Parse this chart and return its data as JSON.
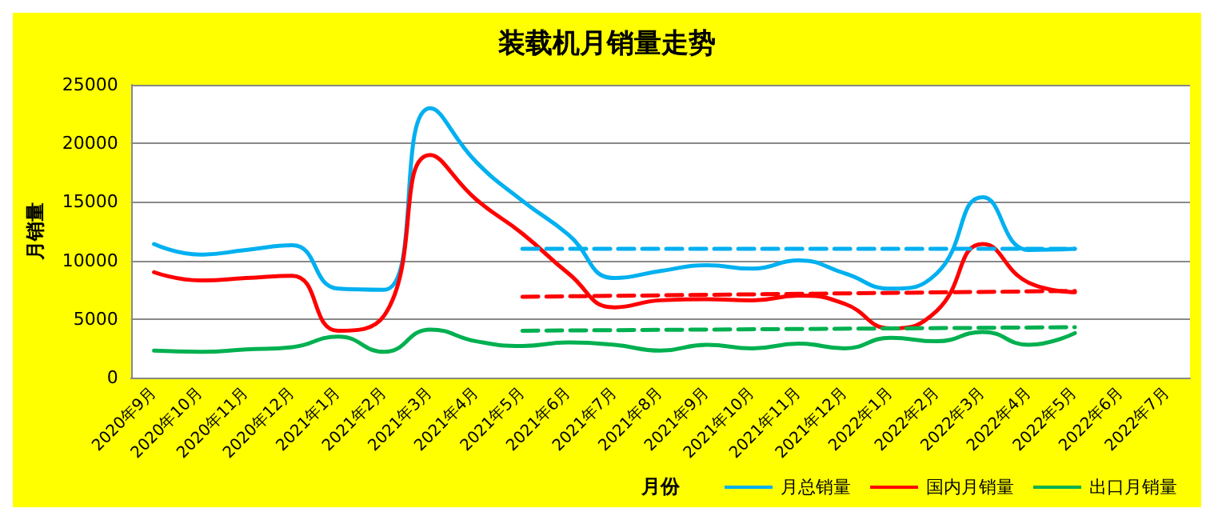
{
  "chart_data": {
    "type": "line",
    "title": "装载机月销量走势",
    "xlabel": "月份",
    "ylabel": "月销量",
    "categories": [
      "2020年9月",
      "2020年10月",
      "2020年11月",
      "2020年12月",
      "2021年1月",
      "2021年2月",
      "2021年3月",
      "2021年4月",
      "2021年5月",
      "2021年6月",
      "2021年7月",
      "2021年8月",
      "2021年9月",
      "2021年10月",
      "2021年11月",
      "2021年12月",
      "2022年1月",
      "2022年2月",
      "2022年3月",
      "2022年4月",
      "2022年5月",
      "2022年6月",
      "2022年7月"
    ],
    "series": [
      {
        "name": "月总销量",
        "color": "#00b0f0",
        "values": [
          11400,
          10500,
          10900,
          11300,
          7600,
          7500,
          23000,
          18400,
          15100,
          12200,
          8500,
          9100,
          9600,
          9300,
          10000,
          8900,
          7600,
          8900,
          15400,
          10900,
          11000,
          null,
          null
        ]
      },
      {
        "name": "国内月销量",
        "color": "#ff0000",
        "values": [
          9000,
          8300,
          8500,
          8700,
          4000,
          5300,
          19000,
          15200,
          12300,
          8900,
          6000,
          6600,
          6700,
          6600,
          7000,
          6300,
          4200,
          5700,
          11400,
          8100,
          7300,
          null,
          null
        ]
      },
      {
        "name": "出口月销量",
        "color": "#00b050",
        "values": [
          2300,
          2200,
          2400,
          2600,
          3500,
          2200,
          4100,
          3100,
          2700,
          3000,
          2800,
          2300,
          2800,
          2500,
          2900,
          2500,
          3400,
          3100,
          3900,
          2800,
          3800,
          null,
          null
        ]
      },
      {
        "color": "#00b0f0",
        "line_style": "dashed",
        "x": [
          "2021年5月",
          "2022年5月"
        ],
        "values": [
          11000,
          11000
        ]
      },
      {
        "color": "#ff0000",
        "line_style": "dashed",
        "x": [
          "2021年5月",
          "2022年5月"
        ],
        "values": [
          6900,
          7400
        ]
      },
      {
        "color": "#00b050",
        "line_style": "dashed",
        "x": [
          "2021年5月",
          "2022年5月"
        ],
        "values": [
          4000,
          4300
        ]
      }
    ],
    "ylim": [
      0,
      25000
    ],
    "yticks": [
      0,
      5000,
      10000,
      15000,
      20000,
      25000
    ],
    "grid": "y",
    "legend": "bottom right",
    "marker": "none",
    "line_style": "solid"
  }
}
